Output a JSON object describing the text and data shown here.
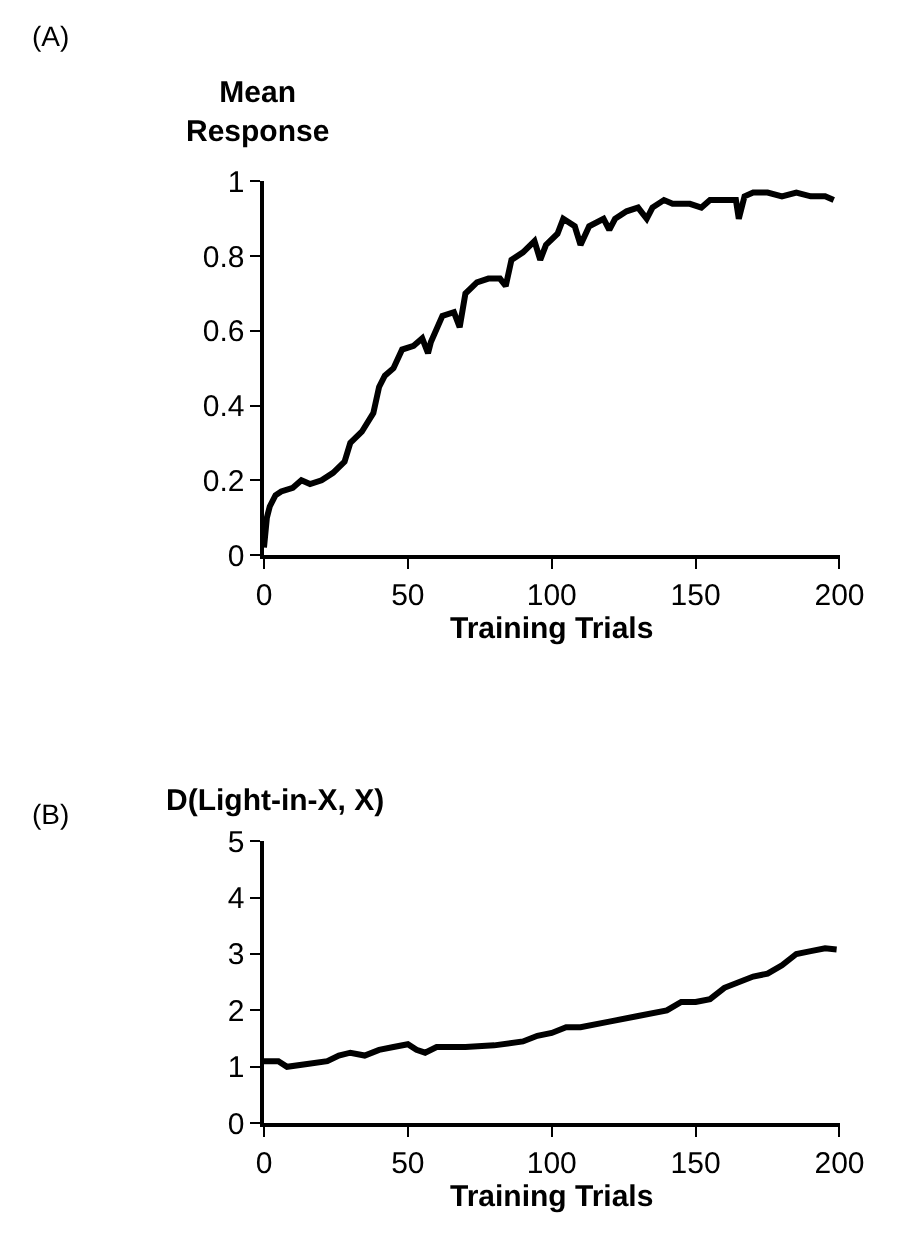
{
  "chart_data": [
    {
      "type": "line",
      "ylabel": "Mean Response",
      "xlabel": "Training Trials",
      "annotations": [
        "(A)"
      ],
      "xlim": [
        0,
        200
      ],
      "xticks": [
        0,
        50,
        100,
        150,
        200
      ],
      "ylim": [
        0,
        1
      ],
      "yticks": [
        0,
        {
          "value": 0.2,
          "label": "0.2"
        },
        {
          "value": 0.4,
          "label": "0.4"
        },
        {
          "value": 0.6,
          "label": "0.6"
        },
        {
          "value": 0.8,
          "label": "0.8"
        },
        1
      ],
      "series": [
        {
          "color": "#000000",
          "x": [
            0,
            1,
            2,
            4,
            6,
            10,
            13,
            16,
            20,
            24,
            28,
            30,
            34,
            38,
            40,
            42,
            45,
            48,
            52,
            55,
            57,
            58,
            62,
            66,
            68,
            70,
            74,
            78,
            82,
            84,
            86,
            90,
            94,
            96,
            98,
            102,
            104,
            108,
            110,
            113,
            118,
            120,
            122,
            126,
            130,
            133,
            135,
            139,
            142,
            148,
            152,
            155,
            160,
            164,
            165,
            167,
            170,
            175,
            180,
            185,
            190,
            195,
            198
          ],
          "values": [
            0.02,
            0.1,
            0.13,
            0.16,
            0.17,
            0.18,
            0.2,
            0.19,
            0.2,
            0.22,
            0.25,
            0.3,
            0.33,
            0.38,
            0.45,
            0.48,
            0.5,
            0.55,
            0.56,
            0.58,
            0.54,
            0.57,
            0.64,
            0.65,
            0.61,
            0.7,
            0.73,
            0.74,
            0.74,
            0.72,
            0.79,
            0.81,
            0.84,
            0.79,
            0.83,
            0.86,
            0.9,
            0.88,
            0.83,
            0.88,
            0.9,
            0.87,
            0.9,
            0.92,
            0.93,
            0.9,
            0.93,
            0.95,
            0.94,
            0.94,
            0.93,
            0.95,
            0.95,
            0.95,
            0.9,
            0.96,
            0.97,
            0.97,
            0.96,
            0.97,
            0.96,
            0.96,
            0.95
          ]
        }
      ]
    },
    {
      "type": "line",
      "title": "D(Light-in-X, X)",
      "xlabel": "Training Trials",
      "annotations": [
        "(B)"
      ],
      "xlim": [
        0,
        200
      ],
      "xticks": [
        0,
        50,
        100,
        150,
        200
      ],
      "ylim": [
        0,
        5
      ],
      "yticks": [
        0,
        1,
        2,
        3,
        4,
        5
      ],
      "series": [
        {
          "color": "#000000",
          "x": [
            0,
            5,
            8,
            15,
            22,
            26,
            30,
            35,
            40,
            45,
            50,
            53,
            56,
            60,
            70,
            80,
            90,
            95,
            100,
            105,
            110,
            120,
            130,
            140,
            145,
            150,
            155,
            160,
            170,
            175,
            180,
            185,
            190,
            195,
            199
          ],
          "values": [
            1.1,
            1.1,
            1.0,
            1.05,
            1.1,
            1.2,
            1.25,
            1.2,
            1.3,
            1.35,
            1.4,
            1.3,
            1.25,
            1.35,
            1.35,
            1.38,
            1.45,
            1.55,
            1.6,
            1.7,
            1.7,
            1.8,
            1.9,
            2.0,
            2.15,
            2.15,
            2.2,
            2.4,
            2.6,
            2.65,
            2.8,
            3.0,
            3.05,
            3.1,
            3.08
          ]
        }
      ]
    }
  ]
}
